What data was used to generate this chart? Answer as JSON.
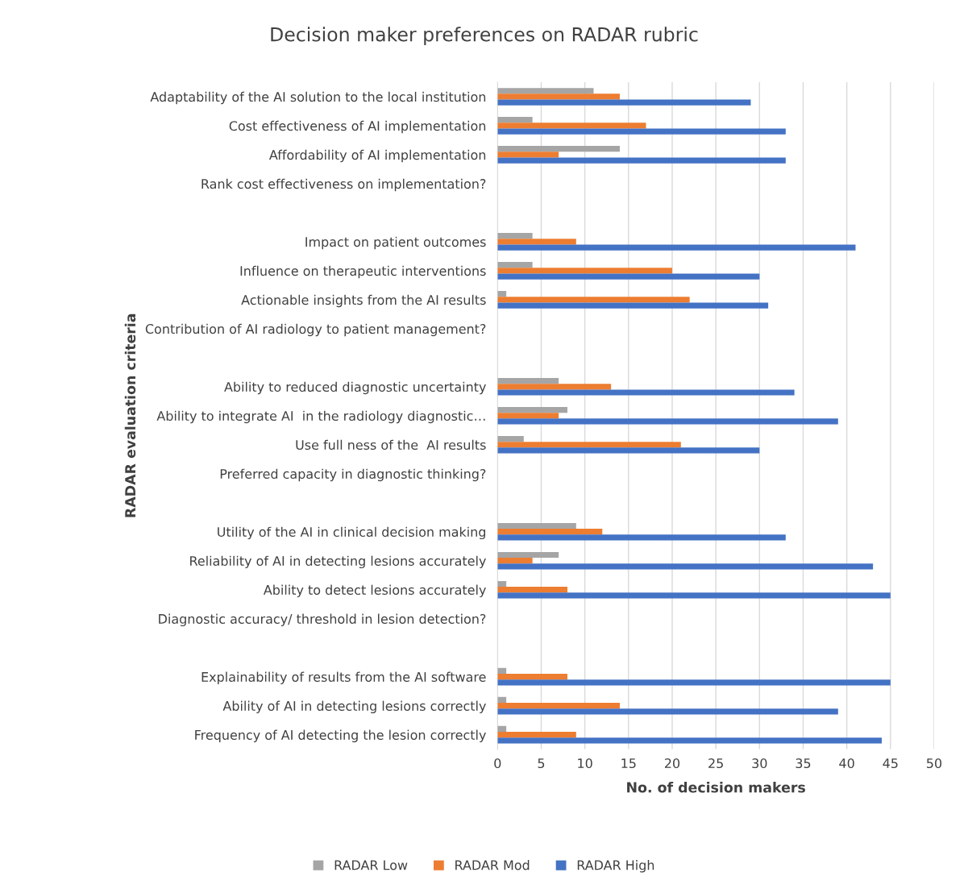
{
  "chart_data": {
    "type": "bar",
    "orientation": "horizontal",
    "title": "Decision maker preferences on RADAR rubric",
    "xlabel": "No. of decision makers",
    "ylabel": "RADAR evaluation criteria",
    "categories": [
      "Adaptability of the AI solution to the local institution",
      "Cost effectiveness of AI implementation",
      "Affordability of AI implementation",
      "Rank cost effectiveness on implementation?",
      null,
      "Impact on patient outcomes",
      "Influence on therapeutic interventions",
      "Actionable insights from the AI results",
      "Contribution of AI radiology to patient management?",
      null,
      "Ability to reduced diagnostic uncertainty",
      "Ability to integrate AI  in the radiology diagnostic…",
      "Use full ness of the  AI results",
      "Preferred capacity in diagnostic thinking?",
      null,
      "Utility of the AI in clinical decision making",
      "Reliability of AI in detecting lesions accurately",
      "Ability to detect lesions accurately",
      "Diagnostic accuracy/ threshold in lesion detection?",
      null,
      "Explainability of results from the AI software",
      "Ability of AI in detecting lesions correctly",
      "Frequency of AI detecting the lesion correctly"
    ],
    "series": [
      {
        "name": "RADAR Low",
        "color": "#a5a5a5",
        "values": [
          11,
          4,
          14,
          null,
          null,
          4,
          4,
          1,
          null,
          null,
          7,
          8,
          3,
          null,
          null,
          9,
          7,
          1,
          null,
          null,
          1,
          1,
          1
        ]
      },
      {
        "name": "RADAR Mod",
        "color": "#ed7d31",
        "values": [
          14,
          17,
          7,
          null,
          null,
          9,
          20,
          22,
          null,
          null,
          13,
          7,
          21,
          null,
          null,
          12,
          4,
          8,
          null,
          null,
          8,
          14,
          9
        ]
      },
      {
        "name": "RADAR High",
        "color": "#4472c4",
        "values": [
          29,
          33,
          33,
          null,
          null,
          41,
          30,
          31,
          null,
          null,
          34,
          39,
          30,
          null,
          null,
          33,
          43,
          45,
          null,
          null,
          45,
          39,
          44
        ]
      }
    ],
    "xlim": [
      0,
      50
    ],
    "xticks": [
      0,
      5,
      10,
      15,
      20,
      25,
      30,
      35,
      40,
      45,
      50
    ],
    "grid": "x",
    "legend": "bottom"
  }
}
